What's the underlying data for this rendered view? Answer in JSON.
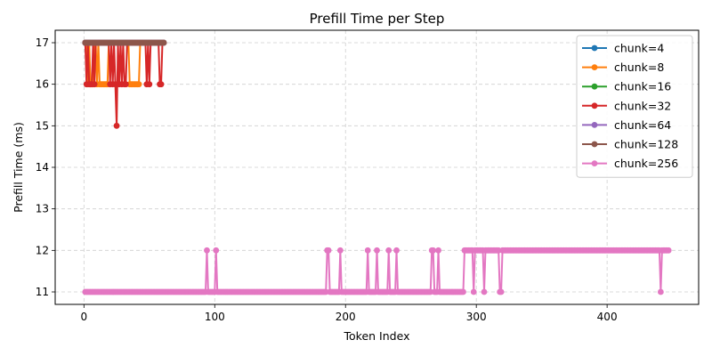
{
  "chart_data": {
    "type": "line",
    "title": "Prefill Time per Step",
    "xlabel": "Token Index",
    "ylabel": "Prefill Time (ms)",
    "xlim": [
      -22,
      470
    ],
    "ylim": [
      10.7,
      17.3
    ],
    "x_ticks": [
      0,
      100,
      200,
      300,
      400
    ],
    "y_ticks": [
      11,
      12,
      13,
      14,
      15,
      16,
      17
    ],
    "grid": true,
    "legend_position": "top-right",
    "series": [
      {
        "name": "chunk=4",
        "color": "#1f77b4",
        "segments": [
          {
            "x_start": 1,
            "x_end": 61,
            "step": 1,
            "base": 17,
            "overrides": {}
          }
        ]
      },
      {
        "name": "chunk=8",
        "color": "#ff7f0e",
        "segments": [
          {
            "x_start": 1,
            "x_end": 61,
            "step": 1,
            "base": 17,
            "overrides": {
              "3": 16,
              "5": 16,
              "6": 16,
              "7": 16,
              "10": 16,
              "12": 16,
              "13": 16,
              "14": 16,
              "15": 16,
              "16": 16,
              "17": 16,
              "18": 16,
              "35": 16,
              "36": 16,
              "37": 16,
              "38": 16,
              "39": 16,
              "40": 16,
              "41": 16,
              "42": 16
            }
          }
        ]
      },
      {
        "name": "chunk=16",
        "color": "#2ca02c",
        "segments": [
          {
            "x_start": 1,
            "x_end": 61,
            "step": 1,
            "base": 17,
            "overrides": {}
          }
        ]
      },
      {
        "name": "chunk=32",
        "color": "#d62728",
        "segments": [
          {
            "x_start": 1,
            "x_end": 61,
            "step": 1,
            "base": 17,
            "overrides": {
              "2": 16,
              "4": 16,
              "5": 16,
              "6": 16,
              "8": 16,
              "20": 16,
              "22": 16,
              "24": 16,
              "25": 15,
              "27": 16,
              "29": 16,
              "31": 16,
              "32": 16,
              "48": 16,
              "50": 16,
              "58": 16,
              "59": 16
            }
          }
        ]
      },
      {
        "name": "chunk=64",
        "color": "#9467bd",
        "segments": [
          {
            "x_start": 1,
            "x_end": 61,
            "step": 1,
            "base": 17,
            "overrides": {}
          }
        ]
      },
      {
        "name": "chunk=128",
        "color": "#8c564b",
        "segments": [
          {
            "x_start": 1,
            "x_end": 61,
            "step": 1,
            "base": 17,
            "overrides": {}
          }
        ]
      },
      {
        "name": "chunk=256",
        "color": "#e377c2",
        "segments": [
          {
            "x_start": 1,
            "x_end": 290,
            "step": 1,
            "base": 11,
            "overrides": {
              "94": 12,
              "101": 12,
              "186": 12,
              "187": 12,
              "196": 12,
              "217": 12,
              "224": 12,
              "233": 12,
              "239": 12,
              "266": 12,
              "267": 12,
              "271": 12
            }
          },
          {
            "x_start": 291,
            "x_end": 447,
            "step": 1,
            "base": 12,
            "overrides": {
              "298": 11,
              "306": 11,
              "318": 11,
              "319": 11,
              "441": 11
            }
          }
        ]
      }
    ]
  }
}
